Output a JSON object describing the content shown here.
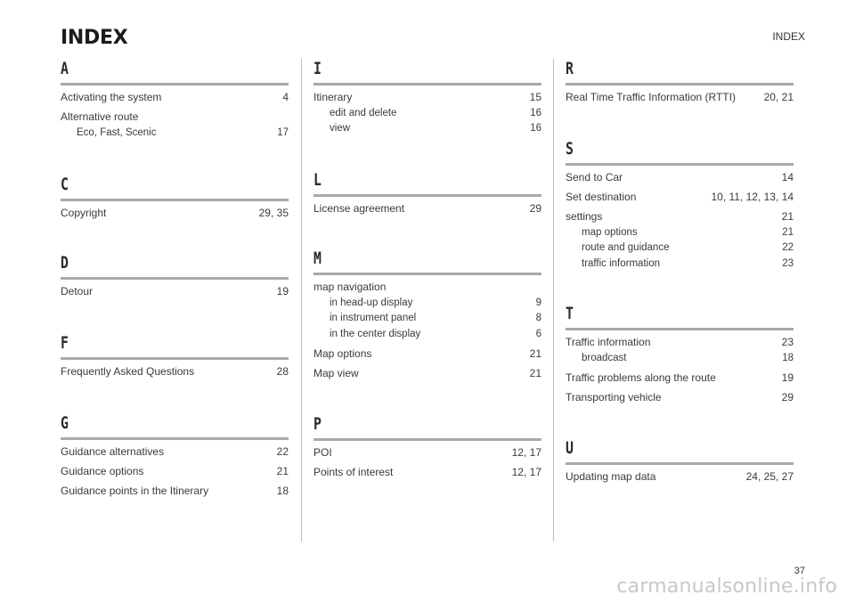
{
  "header": {
    "title": "INDEX",
    "running_head": "INDEX"
  },
  "columns": [
    {
      "sections": [
        {
          "letter": "A",
          "entries": [
            {
              "term": "Activating the system",
              "pages": "4"
            },
            {
              "term": "Alternative route",
              "pages": ""
            },
            {
              "term": "Eco, Fast, Scenic",
              "pages": "17",
              "sub": true
            }
          ]
        },
        {
          "letter": "C",
          "entries": [
            {
              "term": "Copyright",
              "pages": "29, 35"
            }
          ]
        },
        {
          "letter": "D",
          "entries": [
            {
              "term": "Detour",
              "pages": "19"
            }
          ]
        },
        {
          "letter": "F",
          "entries": [
            {
              "term": "Frequently Asked Questions",
              "pages": "28"
            }
          ]
        },
        {
          "letter": "G",
          "entries": [
            {
              "term": "Guidance alternatives",
              "pages": "22"
            },
            {
              "term": "Guidance options",
              "pages": "21"
            },
            {
              "term": "Guidance points in the Itinerary",
              "pages": "18"
            }
          ]
        }
      ]
    },
    {
      "sections": [
        {
          "letter": "I",
          "entries": [
            {
              "term": "Itinerary",
              "pages": "15"
            },
            {
              "term": "edit and delete",
              "pages": "16",
              "sub": true
            },
            {
              "term": "view",
              "pages": "16",
              "sub": true
            }
          ]
        },
        {
          "letter": "L",
          "entries": [
            {
              "term": "License agreement",
              "pages": "29"
            }
          ]
        },
        {
          "letter": "M",
          "entries": [
            {
              "term": "map navigation",
              "pages": ""
            },
            {
              "term": "in head-up display",
              "pages": "9",
              "sub": true
            },
            {
              "term": "in instrument panel",
              "pages": "8",
              "sub": true
            },
            {
              "term": "in the center display",
              "pages": "6",
              "sub": true
            },
            {
              "term": "Map options",
              "pages": "21"
            },
            {
              "term": "Map view",
              "pages": "21"
            }
          ]
        },
        {
          "letter": "P",
          "entries": [
            {
              "term": "POI",
              "pages": "12, 17"
            },
            {
              "term": "Points of interest",
              "pages": "12, 17"
            }
          ]
        }
      ]
    },
    {
      "sections": [
        {
          "letter": "R",
          "entries": [
            {
              "term": "Real Time Traffic Information (RTTI)",
              "pages": "20, 21"
            }
          ]
        },
        {
          "letter": "S",
          "entries": [
            {
              "term": "Send to Car",
              "pages": "14"
            },
            {
              "term": "Set destination",
              "pages": "10, 11, 12, 13, 14"
            },
            {
              "term": "settings",
              "pages": "21"
            },
            {
              "term": "map options",
              "pages": "21",
              "sub": true
            },
            {
              "term": "route and guidance",
              "pages": "22",
              "sub": true
            },
            {
              "term": "traffic information",
              "pages": "23",
              "sub": true
            }
          ]
        },
        {
          "letter": "T",
          "entries": [
            {
              "term": "Traffic information",
              "pages": "23"
            },
            {
              "term": "broadcast",
              "pages": "18",
              "sub": true
            },
            {
              "term": "Traffic problems along the route",
              "pages": "19"
            },
            {
              "term": "Transporting vehicle",
              "pages": "29"
            }
          ]
        },
        {
          "letter": "U",
          "entries": [
            {
              "term": "Updating map data",
              "pages": "24, 25, 27"
            }
          ]
        }
      ]
    }
  ],
  "footer": {
    "page_number": "37",
    "watermark": "carmanualsonline.info"
  }
}
